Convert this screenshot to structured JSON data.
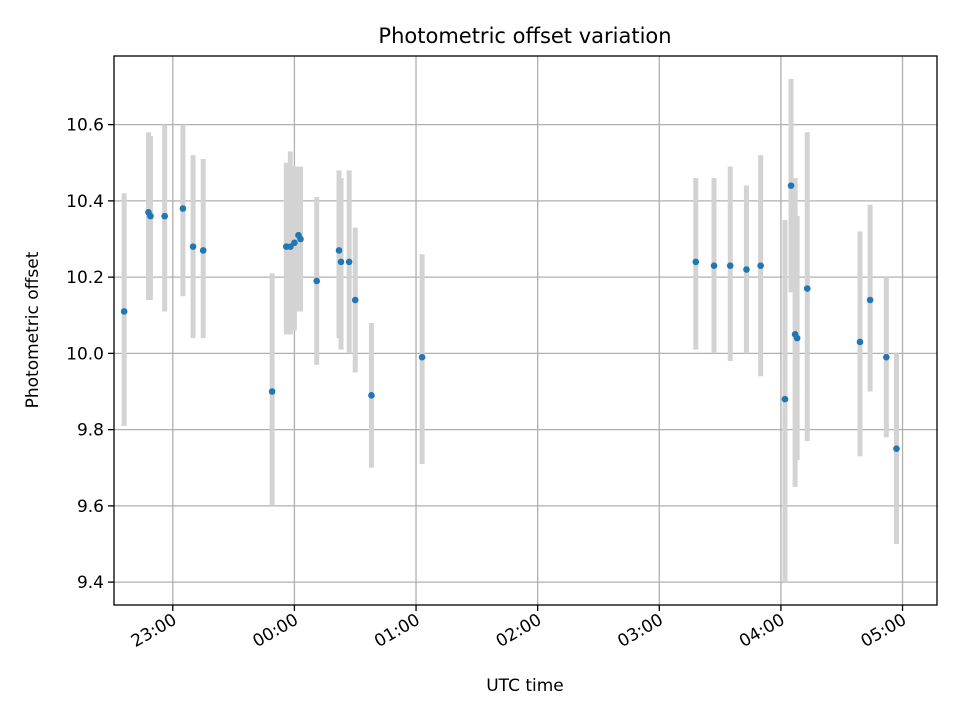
{
  "chart_data": {
    "type": "scatter",
    "title": "Photometric offset variation",
    "xlabel": "UTC time",
    "ylabel": "Photometric offset",
    "xlim": [
      "22:31",
      "05:17"
    ],
    "ylim": [
      9.34,
      10.78
    ],
    "xticks": [
      "23:00",
      "00:00",
      "01:00",
      "02:00",
      "03:00",
      "04:00",
      "05:00"
    ],
    "yticks": [
      9.4,
      9.6,
      9.8,
      10.0,
      10.2,
      10.4,
      10.6
    ],
    "grid": true,
    "colors": {
      "point": "#1f77b4",
      "errorbar": "#d3d3d3"
    },
    "points": [
      {
        "t": "22:36",
        "y": 10.11,
        "lo": 9.81,
        "hi": 10.42
      },
      {
        "t": "22:48",
        "y": 10.37,
        "lo": 10.14,
        "hi": 10.58
      },
      {
        "t": "22:49",
        "y": 10.36,
        "lo": 10.14,
        "hi": 10.57
      },
      {
        "t": "22:56",
        "y": 10.36,
        "lo": 10.11,
        "hi": 10.6
      },
      {
        "t": "23:05",
        "y": 10.38,
        "lo": 10.15,
        "hi": 10.6
      },
      {
        "t": "23:10",
        "y": 10.28,
        "lo": 10.04,
        "hi": 10.52
      },
      {
        "t": "23:15",
        "y": 10.27,
        "lo": 10.04,
        "hi": 10.51
      },
      {
        "t": "23:49",
        "y": 9.9,
        "lo": 9.6,
        "hi": 10.21
      },
      {
        "t": "23:56",
        "y": 10.28,
        "lo": 10.05,
        "hi": 10.5
      },
      {
        "t": "23:58",
        "y": 10.28,
        "lo": 10.05,
        "hi": 10.53
      },
      {
        "t": "00:00",
        "y": 10.29,
        "lo": 10.06,
        "hi": 10.49
      },
      {
        "t": "00:02",
        "y": 10.31,
        "lo": 10.11,
        "hi": 10.49
      },
      {
        "t": "00:03",
        "y": 10.3,
        "lo": 10.11,
        "hi": 10.49
      },
      {
        "t": "00:11",
        "y": 10.19,
        "lo": 9.97,
        "hi": 10.41
      },
      {
        "t": "00:22",
        "y": 10.27,
        "lo": 10.04,
        "hi": 10.48
      },
      {
        "t": "00:23",
        "y": 10.24,
        "lo": 10.01,
        "hi": 10.46
      },
      {
        "t": "00:27",
        "y": 10.24,
        "lo": 10.0,
        "hi": 10.48
      },
      {
        "t": "00:30",
        "y": 10.14,
        "lo": 9.95,
        "hi": 10.33
      },
      {
        "t": "00:38",
        "y": 9.89,
        "lo": 9.7,
        "hi": 10.08
      },
      {
        "t": "01:03",
        "y": 9.99,
        "lo": 9.71,
        "hi": 10.26
      },
      {
        "t": "03:18",
        "y": 10.24,
        "lo": 10.01,
        "hi": 10.46
      },
      {
        "t": "03:27",
        "y": 10.23,
        "lo": 10.0,
        "hi": 10.46
      },
      {
        "t": "03:35",
        "y": 10.23,
        "lo": 9.98,
        "hi": 10.49
      },
      {
        "t": "03:43",
        "y": 10.22,
        "lo": 10.0,
        "hi": 10.44
      },
      {
        "t": "03:50",
        "y": 10.23,
        "lo": 9.94,
        "hi": 10.52
      },
      {
        "t": "04:02",
        "y": 9.88,
        "lo": 9.4,
        "hi": 10.35
      },
      {
        "t": "04:05",
        "y": 10.44,
        "lo": 10.16,
        "hi": 10.72
      },
      {
        "t": "04:07",
        "y": 10.05,
        "lo": 9.65,
        "hi": 10.46
      },
      {
        "t": "04:08",
        "y": 10.04,
        "lo": 9.72,
        "hi": 10.36
      },
      {
        "t": "04:13",
        "y": 10.17,
        "lo": 9.77,
        "hi": 10.58
      },
      {
        "t": "04:39",
        "y": 10.03,
        "lo": 9.73,
        "hi": 10.32
      },
      {
        "t": "04:44",
        "y": 10.14,
        "lo": 9.9,
        "hi": 10.39
      },
      {
        "t": "04:52",
        "y": 9.99,
        "lo": 9.78,
        "hi": 10.2
      },
      {
        "t": "04:57",
        "y": 9.75,
        "lo": 9.5,
        "hi": 10.0
      }
    ]
  }
}
